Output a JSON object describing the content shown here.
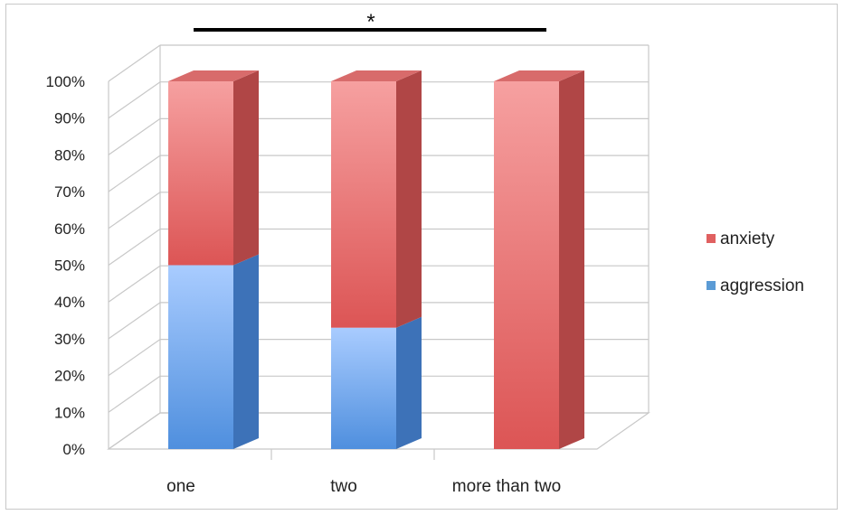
{
  "chart_data": {
    "type": "bar",
    "stacked": true,
    "percent": true,
    "three_d": true,
    "categories": [
      "one",
      "two",
      "more than two"
    ],
    "series": [
      {
        "name": "aggression",
        "values": [
          50,
          33,
          0
        ],
        "color": "#5b9bd5"
      },
      {
        "name": "anxiety",
        "values": [
          50,
          67,
          100
        ],
        "color": "#e06060"
      }
    ],
    "ylim": [
      0,
      100
    ],
    "y_ticks": [
      "0%",
      "10%",
      "20%",
      "30%",
      "40%",
      "50%",
      "60%",
      "70%",
      "80%",
      "90%",
      "100%"
    ],
    "grid": true,
    "legend": {
      "position": "right",
      "order": [
        "anxiety",
        "aggression"
      ]
    },
    "annotation": {
      "text": "*",
      "type": "significance-bracket",
      "from": "one",
      "to": "more than two"
    }
  }
}
